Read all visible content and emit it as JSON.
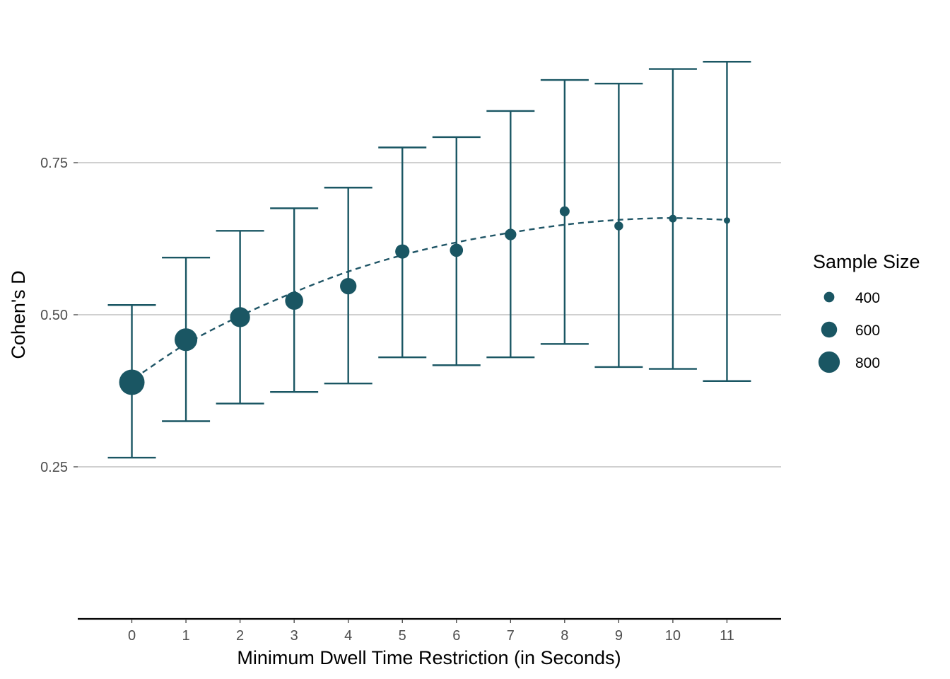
{
  "chart_data": {
    "type": "scatter",
    "xlabel": "Minimum Dwell Time Restriction (in Seconds)",
    "ylabel": "Cohen's D",
    "xlim": [
      -1,
      12
    ],
    "ylim": [
      0,
      1
    ],
    "x_ticks": [
      0,
      1,
      2,
      3,
      4,
      5,
      6,
      7,
      8,
      9,
      10,
      11
    ],
    "x_tick_labels": [
      "0",
      "1",
      "2",
      "3",
      "4",
      "5",
      "6",
      "7",
      "8",
      "9",
      "10",
      "11"
    ],
    "y_ticks": [
      0.25,
      0.5,
      0.75
    ],
    "y_tick_labels": [
      "0.25",
      "0.50",
      "0.75"
    ],
    "grid": "horizontal-major",
    "series": [
      {
        "x": [
          0,
          1,
          2,
          3,
          4,
          5,
          6,
          7,
          8,
          9,
          10,
          11
        ],
        "y": [
          0.389,
          0.459,
          0.496,
          0.523,
          0.547,
          0.604,
          0.606,
          0.632,
          0.67,
          0.646,
          0.658,
          0.655
        ],
        "ci_lower": [
          0.265,
          0.325,
          0.354,
          0.373,
          0.387,
          0.43,
          0.417,
          0.43,
          0.452,
          0.414,
          0.411,
          0.391
        ],
        "ci_upper": [
          0.516,
          0.594,
          0.638,
          0.675,
          0.709,
          0.775,
          0.792,
          0.835,
          0.886,
          0.88,
          0.904,
          0.916
        ],
        "sample_size": [
          950,
          850,
          750,
          680,
          620,
          540,
          500,
          440,
          380,
          340,
          300,
          250
        ]
      }
    ],
    "trend_line": {
      "style": "dashed",
      "x": [
        0.2,
        1,
        2,
        3,
        4,
        5,
        6,
        7,
        8,
        9,
        10,
        11
      ],
      "y": [
        0.405,
        0.452,
        0.498,
        0.537,
        0.571,
        0.598,
        0.619,
        0.635,
        0.648,
        0.656,
        0.659,
        0.656
      ]
    },
    "legend": {
      "title": "Sample Size",
      "position": "right",
      "entries": [
        {
          "label": "400",
          "value": 400
        },
        {
          "label": "600",
          "value": 600
        },
        {
          "label": "800",
          "value": 800
        }
      ]
    },
    "colors": {
      "point": "#1a5663",
      "trend": "#1f5566",
      "grid": "#b3b3b3",
      "axis": "#000000"
    }
  }
}
